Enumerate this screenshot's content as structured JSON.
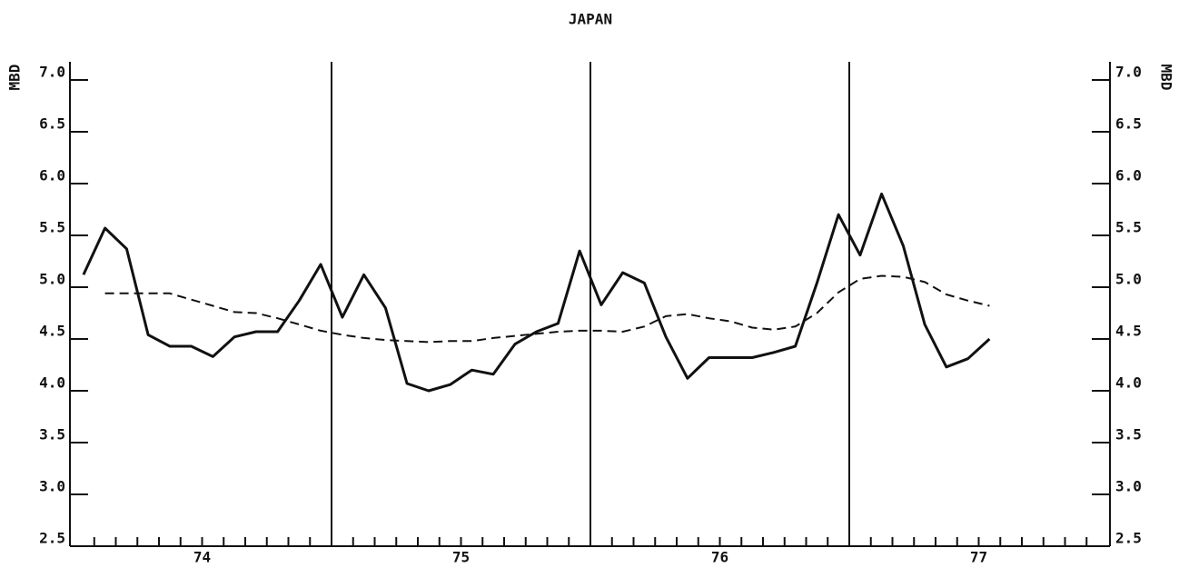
{
  "chart_data": {
    "type": "line",
    "title": "JAPAN",
    "y_label": "MBD",
    "x": [
      0.5,
      1.5,
      2.5,
      3.5,
      4.5,
      5.5,
      6.5,
      7.5,
      8.5,
      9.5,
      10.5,
      11.5,
      12.5,
      13.5,
      14.5,
      15.5,
      16.5,
      17.5,
      18.5,
      19.5,
      20.5,
      21.5,
      22.5,
      23.5,
      24.5,
      25.5,
      26.5,
      27.5,
      28.5,
      29.5,
      30.5,
      31.5,
      32.5,
      33.5,
      34.5,
      35.5,
      36.5,
      37.5,
      38.5,
      39.5,
      40.5,
      41.5,
      42.5
    ],
    "series": [
      {
        "style": "solid",
        "color": "#111111",
        "values": [
          5.12,
          5.57,
          5.37,
          4.54,
          4.43,
          4.43,
          4.33,
          4.52,
          4.57,
          4.57,
          4.87,
          5.22,
          4.71,
          5.12,
          4.8,
          4.07,
          4.0,
          4.06,
          4.2,
          4.16,
          4.45,
          4.57,
          4.65,
          5.35,
          4.83,
          5.14,
          5.04,
          4.52,
          4.12,
          4.32,
          4.32,
          4.32,
          4.37,
          4.43,
          5.04,
          5.7,
          5.31,
          5.9,
          5.4,
          4.64,
          4.23,
          4.31,
          4.5
        ]
      },
      {
        "style": "dashed",
        "color": "#111111",
        "values": [
          null,
          4.94,
          4.94,
          4.94,
          4.94,
          4.88,
          4.82,
          4.76,
          4.75,
          4.7,
          4.64,
          4.58,
          4.54,
          4.51,
          4.49,
          4.48,
          4.47,
          4.48,
          4.48,
          4.51,
          4.53,
          4.55,
          4.57,
          4.58,
          4.58,
          4.57,
          4.62,
          4.72,
          4.74,
          4.7,
          4.67,
          4.61,
          4.59,
          4.62,
          4.75,
          4.95,
          5.08,
          5.11,
          5.1,
          5.05,
          4.93,
          4.87,
          4.82
        ]
      }
    ],
    "xlim": [
      0,
      48
    ],
    "xticks": [
      {
        "value": 6,
        "label": "74"
      },
      {
        "value": 18,
        "label": "75"
      },
      {
        "value": 30,
        "label": "76"
      },
      {
        "value": 42,
        "label": "77"
      }
    ],
    "x_minor_step": 1,
    "year_lines": [
      12,
      24,
      36
    ],
    "ylim": [
      2.5,
      7.0
    ],
    "yticks": [
      2.5,
      {
        "value": 3,
        "label": "3.0"
      },
      3.5,
      {
        "value": 4,
        "label": "4.0"
      },
      4.5,
      {
        "value": 5,
        "label": "5.0"
      },
      5.5,
      {
        "value": 6,
        "label": "6.0"
      },
      6.5,
      {
        "value": 7,
        "label": "7.0"
      }
    ],
    "y2lim": [
      2.5,
      7.0
    ],
    "y2ticks": [
      2.5,
      {
        "value": 3,
        "label": "3.0"
      },
      3.5,
      {
        "value": 4,
        "label": "4.0"
      },
      4.5,
      {
        "value": 5,
        "label": "5.0"
      },
      5.5,
      {
        "value": 6,
        "label": "6.0"
      },
      6.5,
      {
        "value": 7,
        "label": "7.0"
      }
    ]
  }
}
